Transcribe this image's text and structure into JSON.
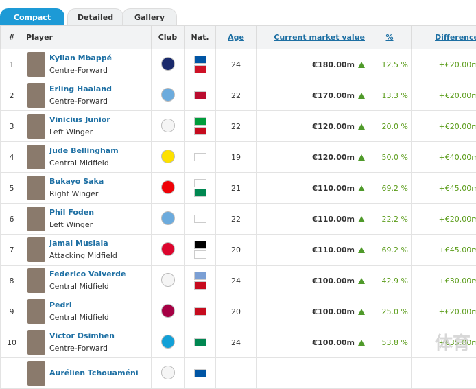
{
  "tabs": [
    "Compact",
    "Detailed",
    "Gallery"
  ],
  "header": {
    "rank": "#",
    "player": "Player",
    "club": "Club",
    "nat": "Nat.",
    "age": "Age",
    "value": "Current market value",
    "pct": "%",
    "diff": "Difference"
  },
  "rows": [
    [
      "1",
      "Kylian Mbappé",
      "Centre-Forward",
      "24",
      "€180.00m",
      "12.5 %",
      "+€20.00m"
    ],
    [
      "2",
      "Erling Haaland",
      "Centre-Forward",
      "22",
      "€170.00m",
      "13.3 %",
      "+€20.00m"
    ],
    [
      "3",
      "Vinicius Junior",
      "Left Winger",
      "22",
      "€120.00m",
      "20.0 %",
      "+€20.00m"
    ],
    [
      "4",
      "Jude Bellingham",
      "Central Midfield",
      "19",
      "€120.00m",
      "50.0 %",
      "+€40.00m"
    ],
    [
      "5",
      "Bukayo Saka",
      "Right Winger",
      "21",
      "€110.00m",
      "69.2 %",
      "+€45.00m"
    ],
    [
      "6",
      "Phil Foden",
      "Left Winger",
      "22",
      "€110.00m",
      "22.2 %",
      "+€20.00m"
    ],
    [
      "7",
      "Jamal Musiala",
      "Attacking Midfield",
      "20",
      "€110.00m",
      "69.2 %",
      "+€45.00m"
    ],
    [
      "8",
      "Federico Valverde",
      "Central Midfield",
      "24",
      "€100.00m",
      "42.9 %",
      "+€30.00m"
    ],
    [
      "9",
      "Pedri",
      "Central Midfield",
      "20",
      "€100.00m",
      "25.0 %",
      "+€20.00m"
    ],
    [
      "10",
      "Victor Osimhen",
      "Centre-Forward",
      "24",
      "€100.00m",
      "53.8 %",
      "+€35.00m"
    ],
    [
      "",
      "Aurélien Tchouaméni",
      "",
      "",
      "",
      "",
      ""
    ]
  ],
  "watermark": "体育"
}
